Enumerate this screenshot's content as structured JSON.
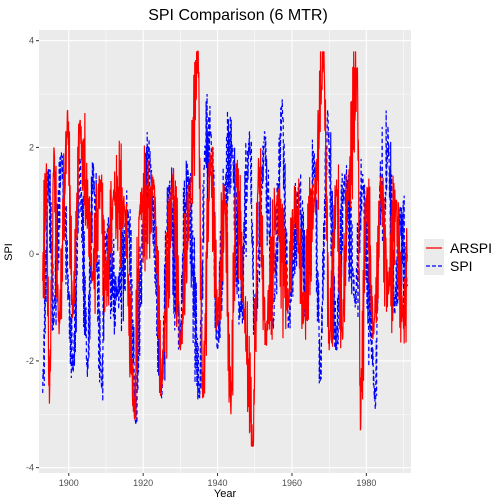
{
  "chart_data": {
    "type": "line",
    "title": "SPI Comparison (6 MTR)",
    "xlabel": "Year",
    "ylabel": "SPI",
    "xlim": [
      1892,
      1992
    ],
    "ylim": [
      -4.1,
      4.2
    ],
    "x_ticks": [
      1900,
      1920,
      1940,
      1960,
      1980
    ],
    "y_ticks": [
      -4,
      -2,
      0,
      2,
      4
    ],
    "grid": true,
    "legend_position": "right",
    "x_start": 1893,
    "x_end": 1991,
    "series": [
      {
        "name": "ARSPI",
        "color": "#ff0000",
        "dash": "solid",
        "peaks": [
          [
            1893.0,
            -0.5
          ],
          [
            1894.0,
            1.7
          ],
          [
            1894.8,
            -2.8
          ],
          [
            1896.0,
            2.0
          ],
          [
            1897.4,
            -1.5
          ],
          [
            1899.7,
            2.7
          ],
          [
            1901.0,
            -1.2
          ],
          [
            1903.0,
            2.5
          ],
          [
            1906.4,
            -0.5
          ],
          [
            1908.6,
            1.4
          ],
          [
            1910.0,
            -0.6
          ],
          [
            1912.0,
            1.1
          ],
          [
            1915.0,
            0.9
          ],
          [
            1917.7,
            -3.1
          ],
          [
            1919.0,
            0.8
          ],
          [
            1923.0,
            1.3
          ],
          [
            1925.0,
            -2.5
          ],
          [
            1928.0,
            1.5
          ],
          [
            1930.0,
            -1.8
          ],
          [
            1932.6,
            1.0
          ],
          [
            1934.8,
            3.9
          ],
          [
            1936.0,
            -2.7
          ],
          [
            1938.0,
            1.9
          ],
          [
            1940.0,
            -1.3
          ],
          [
            1942.0,
            1.1
          ],
          [
            1943.6,
            -3.0
          ],
          [
            1945.0,
            1.7
          ],
          [
            1947.0,
            -0.9
          ],
          [
            1949.6,
            -3.7
          ],
          [
            1951.0,
            1.8
          ],
          [
            1953.0,
            -1.7
          ],
          [
            1956.0,
            1.1
          ],
          [
            1959.0,
            -1.0
          ],
          [
            1961.0,
            1.1
          ],
          [
            1963.0,
            -1.3
          ],
          [
            1966.0,
            1.0
          ],
          [
            1968.6,
            3.8
          ],
          [
            1970.0,
            -1.8
          ],
          [
            1972.0,
            1.4
          ],
          [
            1973.6,
            -1.6
          ],
          [
            1975.0,
            1.2
          ],
          [
            1977.6,
            3.5
          ],
          [
            1978.4,
            -3.3
          ],
          [
            1980.0,
            1.1
          ],
          [
            1982.0,
            -1.5
          ],
          [
            1984.0,
            1.3
          ],
          [
            1986.0,
            -0.7
          ],
          [
            1988.0,
            1.0
          ],
          [
            1990.0,
            -1.4
          ],
          [
            1991.0,
            0.0
          ]
        ]
      },
      {
        "name": "SPI",
        "color": "#0000ff",
        "dash": "dashed",
        "peaks": [
          [
            1893.0,
            -2.6
          ],
          [
            1894.5,
            1.6
          ],
          [
            1896.0,
            -1.3
          ],
          [
            1898.0,
            1.9
          ],
          [
            1900.0,
            -0.8
          ],
          [
            1901.2,
            -2.2
          ],
          [
            1903.0,
            1.8
          ],
          [
            1905.0,
            -2.3
          ],
          [
            1906.6,
            1.7
          ],
          [
            1908.8,
            -2.5
          ],
          [
            1910.0,
            0.3
          ],
          [
            1913.0,
            -0.8
          ],
          [
            1916.0,
            0.8
          ],
          [
            1918.0,
            -3.2
          ],
          [
            1920.0,
            0.7
          ],
          [
            1922.0,
            1.7
          ],
          [
            1925.0,
            -2.7
          ],
          [
            1927.0,
            1.3
          ],
          [
            1930.0,
            -1.6
          ],
          [
            1932.0,
            1.6
          ],
          [
            1935.2,
            -2.7
          ],
          [
            1936.5,
            1.9
          ],
          [
            1938.2,
            2.3
          ],
          [
            1940.0,
            -1.8
          ],
          [
            1942.0,
            1.3
          ],
          [
            1944.0,
            2.0
          ],
          [
            1946.0,
            -1.2
          ],
          [
            1948.6,
            2.3
          ],
          [
            1950.0,
            -1.5
          ],
          [
            1952.6,
            2.3
          ],
          [
            1955.0,
            -1.4
          ],
          [
            1957.4,
            2.9
          ],
          [
            1959.0,
            -1.4
          ],
          [
            1962.0,
            1.3
          ],
          [
            1964.0,
            -1.2
          ],
          [
            1966.0,
            1.9
          ],
          [
            1967.6,
            -2.4
          ],
          [
            1969.6,
            2.7
          ],
          [
            1972.0,
            -1.8
          ],
          [
            1974.0,
            1.4
          ],
          [
            1977.0,
            -1.0
          ],
          [
            1979.0,
            1.5
          ],
          [
            1982.4,
            -2.9
          ],
          [
            1983.6,
            1.3
          ],
          [
            1985.0,
            0.5
          ],
          [
            1985.8,
            2.4
          ],
          [
            1987.6,
            -1.1
          ],
          [
            1989.0,
            0.8
          ],
          [
            1991.0,
            -0.6
          ]
        ]
      }
    ]
  }
}
